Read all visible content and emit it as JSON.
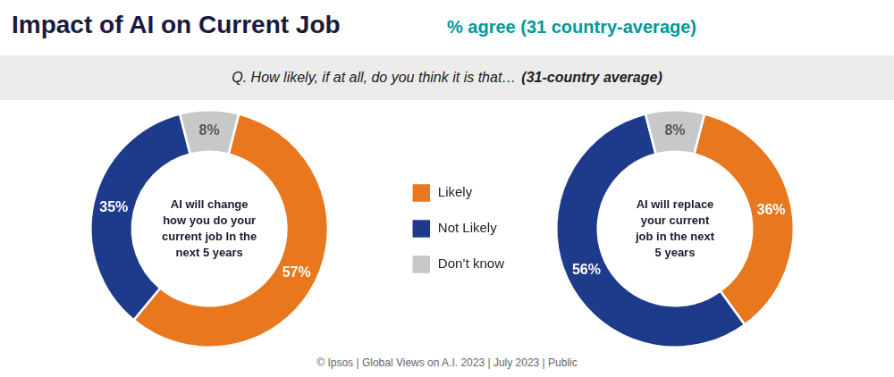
{
  "title": "Impact of AI on Current Job",
  "subtitle": "% agree (31 country-average)",
  "annotations": [
    "Q. How likely, if at all, do you think it is that…",
    "(31-country average)",
    "© Ipsos | Global Views on A.I. 2023 | July 2023 | Public"
  ],
  "chart_data": [
    {
      "type": "doughnut",
      "title": "AI will change\nhow you do your\ncurrent job In the\nnext 5 years",
      "categories": [
        "Likely",
        "Not Likely",
        "Don’t know"
      ],
      "values": [
        57,
        35,
        8
      ],
      "value_labels": [
        "57%",
        "35%",
        "8%"
      ],
      "colors": [
        "#E8771E",
        "#1E3A8A",
        "#C8C8C8"
      ],
      "data_labels": true,
      "legend": "right"
    },
    {
      "type": "doughnut",
      "title": "AI will replace\nyour current\njob in the next\n5 years",
      "categories": [
        "Likely",
        "Not Likely",
        "Don’t know"
      ],
      "values": [
        36,
        56,
        8
      ],
      "value_labels": [
        "36%",
        "56%",
        "8%"
      ],
      "colors": [
        "#E8771E",
        "#1E3A8A",
        "#C8C8C8"
      ],
      "data_labels": true
    }
  ]
}
